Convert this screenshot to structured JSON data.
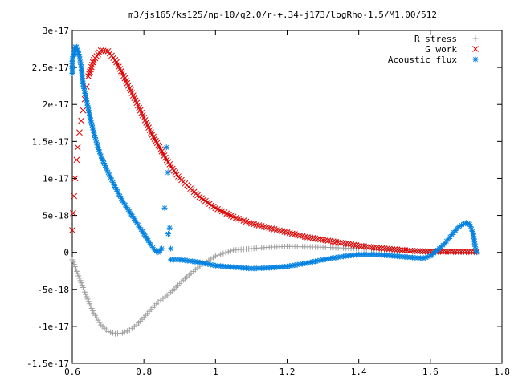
{
  "chart_data": {
    "type": "scatter",
    "title": "m3/js165/ks125/np-10/q2.0/r-+.34-j173/logRho-1.5/M1.00/512",
    "xlabel": "",
    "ylabel": "",
    "xlim": [
      0.6,
      1.8
    ],
    "ylim": [
      -1.5e-17,
      3e-17
    ],
    "x_ticks": [
      0.6,
      0.8,
      1.0,
      1.2,
      1.4,
      1.6,
      1.8
    ],
    "x_tick_labels": [
      "0.6",
      "0.8",
      "1",
      "1.2",
      "1.4",
      "1.6",
      "1.8"
    ],
    "y_ticks": [
      -1.5e-17,
      -1e-17,
      -5e-18,
      0,
      5e-18,
      1e-17,
      1.5e-17,
      2e-17,
      2.5e-17,
      3e-17
    ],
    "y_tick_labels": [
      "-1.5e-17",
      "-1e-17",
      "-5e-18",
      "0",
      "5e-18",
      "1e-17",
      "1.5e-17",
      "2e-17",
      "2.5e-17",
      "3e-17"
    ],
    "grid": false,
    "legend_position": "top-right",
    "series": [
      {
        "name": "R stress",
        "color": "#a0a0a0",
        "marker": "plus",
        "curve": [
          [
            0.6,
            -1e-18
          ],
          [
            0.62,
            -3.5e-18
          ],
          [
            0.64,
            -6e-18
          ],
          [
            0.66,
            -8.2e-18
          ],
          [
            0.68,
            -9.8e-18
          ],
          [
            0.7,
            -1.07e-17
          ],
          [
            0.72,
            -1.1e-17
          ],
          [
            0.74,
            -1.09e-17
          ],
          [
            0.76,
            -1.05e-17
          ],
          [
            0.78,
            -9.8e-18
          ],
          [
            0.8,
            -8.8e-18
          ],
          [
            0.82,
            -7.7e-18
          ],
          [
            0.84,
            -6.7e-18
          ],
          [
            0.86,
            -6e-18
          ],
          [
            0.88,
            -5.2e-18
          ],
          [
            0.9,
            -4.2e-18
          ],
          [
            0.92,
            -3.3e-18
          ],
          [
            0.95,
            -2.1e-18
          ],
          [
            1.0,
            -5e-19
          ],
          [
            1.05,
            3e-19
          ],
          [
            1.1,
            5e-19
          ],
          [
            1.15,
            7e-19
          ],
          [
            1.2,
            8e-19
          ],
          [
            1.3,
            7e-19
          ],
          [
            1.4,
            5e-19
          ],
          [
            1.5,
            3e-19
          ],
          [
            1.6,
            1e-19
          ],
          [
            1.7,
            0.0
          ],
          [
            1.73,
            0.0
          ]
        ]
      },
      {
        "name": "G work",
        "color": "#dd0000",
        "marker": "cross",
        "scattered": [
          [
            0.6,
            3e-18
          ],
          [
            0.602,
            5.3e-18
          ],
          [
            0.605,
            7.6e-18
          ],
          [
            0.608,
            1e-17
          ],
          [
            0.612,
            1.25e-17
          ],
          [
            0.615,
            1.42e-17
          ],
          [
            0.62,
            1.62e-17
          ],
          [
            0.625,
            1.78e-17
          ],
          [
            0.63,
            1.92e-17
          ],
          [
            0.635,
            2.07e-17
          ],
          [
            0.64,
            2.24e-17
          ],
          [
            0.645,
            2.38e-17
          ]
        ],
        "curve": [
          [
            0.645,
            2.38e-17
          ],
          [
            0.66,
            2.6e-17
          ],
          [
            0.68,
            2.73e-17
          ],
          [
            0.7,
            2.72e-17
          ],
          [
            0.72,
            2.6e-17
          ],
          [
            0.74,
            2.42e-17
          ],
          [
            0.76,
            2.22e-17
          ],
          [
            0.78,
            2.02e-17
          ],
          [
            0.8,
            1.82e-17
          ],
          [
            0.82,
            1.62e-17
          ],
          [
            0.84,
            1.45e-17
          ],
          [
            0.86,
            1.28e-17
          ],
          [
            0.88,
            1.13e-17
          ],
          [
            0.9,
            1e-17
          ],
          [
            0.95,
            7.7e-18
          ],
          [
            1.0,
            6e-18
          ],
          [
            1.05,
            4.8e-18
          ],
          [
            1.1,
            3.9e-18
          ],
          [
            1.15,
            3.3e-18
          ],
          [
            1.2,
            2.7e-18
          ],
          [
            1.25,
            2.1e-18
          ],
          [
            1.3,
            1.7e-18
          ],
          [
            1.35,
            1.3e-18
          ],
          [
            1.4,
            9e-19
          ],
          [
            1.45,
            6e-19
          ],
          [
            1.5,
            4e-19
          ],
          [
            1.55,
            2e-19
          ],
          [
            1.6,
            1e-19
          ],
          [
            1.65,
            1e-19
          ],
          [
            1.7,
            1e-19
          ],
          [
            1.73,
            1e-19
          ]
        ]
      },
      {
        "name": "Acoustic flux",
        "color": "#0080e0",
        "marker": "star",
        "curve": [
          [
            0.6,
            2.42e-17
          ],
          [
            0.6,
            2.62e-17
          ],
          [
            0.605,
            2.68e-17
          ],
          [
            0.608,
            2.78e-17
          ],
          [
            0.612,
            2.78e-17
          ],
          [
            0.615,
            2.74e-17
          ],
          [
            0.62,
            2.65e-17
          ],
          [
            0.625,
            2.5e-17
          ],
          [
            0.63,
            2.28e-17
          ],
          [
            0.64,
            2.05e-17
          ],
          [
            0.65,
            1.82e-17
          ],
          [
            0.66,
            1.62e-17
          ],
          [
            0.67,
            1.45e-17
          ],
          [
            0.68,
            1.3e-17
          ],
          [
            0.7,
            1.08e-17
          ],
          [
            0.72,
            8.8e-18
          ],
          [
            0.74,
            7e-18
          ],
          [
            0.76,
            5.5e-18
          ],
          [
            0.78,
            4e-18
          ],
          [
            0.8,
            2.5e-18
          ],
          [
            0.82,
            1e-18
          ],
          [
            0.83,
            3e-19
          ],
          [
            0.84,
            0.0
          ],
          [
            0.85,
            5e-19
          ]
        ],
        "scattered": [
          [
            0.858,
            6e-18
          ],
          [
            0.863,
            1.42e-17
          ],
          [
            0.867,
            1.08e-17
          ],
          [
            0.872,
            3.3e-18
          ],
          [
            0.875,
            5e-19
          ],
          [
            0.868,
            2.5e-18
          ]
        ],
        "curve2": [
          [
            0.875,
            -1e-18
          ],
          [
            0.9,
            -1e-18
          ],
          [
            0.95,
            -1.3e-18
          ],
          [
            1.0,
            -1.8e-18
          ],
          [
            1.05,
            -2e-18
          ],
          [
            1.1,
            -2.2e-18
          ],
          [
            1.15,
            -2.1e-18
          ],
          [
            1.2,
            -1.9e-18
          ],
          [
            1.25,
            -1.5e-18
          ],
          [
            1.3,
            -1e-18
          ],
          [
            1.35,
            -6e-19
          ],
          [
            1.4,
            -3e-19
          ],
          [
            1.45,
            -3e-19
          ],
          [
            1.5,
            -5e-19
          ],
          [
            1.55,
            -7e-19
          ],
          [
            1.58,
            -8e-19
          ],
          [
            1.6,
            -5e-19
          ],
          [
            1.62,
            3e-19
          ],
          [
            1.64,
            1.2e-18
          ],
          [
            1.66,
            2.4e-18
          ],
          [
            1.68,
            3.5e-18
          ],
          [
            1.7,
            4e-18
          ],
          [
            1.71,
            3.8e-18
          ],
          [
            1.72,
            2.5e-18
          ],
          [
            1.725,
            8e-19
          ],
          [
            1.73,
            0.0
          ]
        ]
      }
    ]
  }
}
